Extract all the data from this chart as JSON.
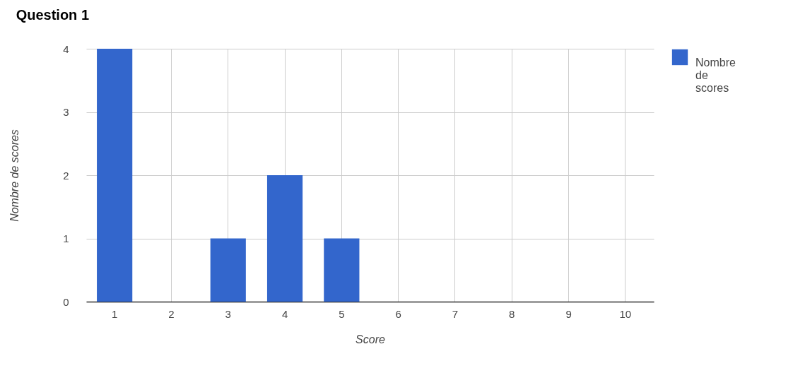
{
  "chart_data": {
    "type": "bar",
    "title": "Question 1",
    "xlabel": "Score",
    "ylabel": "Nombre de scores",
    "categories": [
      "1",
      "2",
      "3",
      "4",
      "5",
      "6",
      "7",
      "8",
      "9",
      "10"
    ],
    "series": [
      {
        "name": "Nombre de scores",
        "color": "#3366cc",
        "values": [
          4,
          0,
          1,
          2,
          1,
          0,
          0,
          0,
          0,
          0
        ]
      }
    ],
    "ylim": [
      0,
      4
    ],
    "yticks": [
      0,
      1,
      2,
      3,
      4
    ],
    "grid": true,
    "legend": "top right"
  }
}
